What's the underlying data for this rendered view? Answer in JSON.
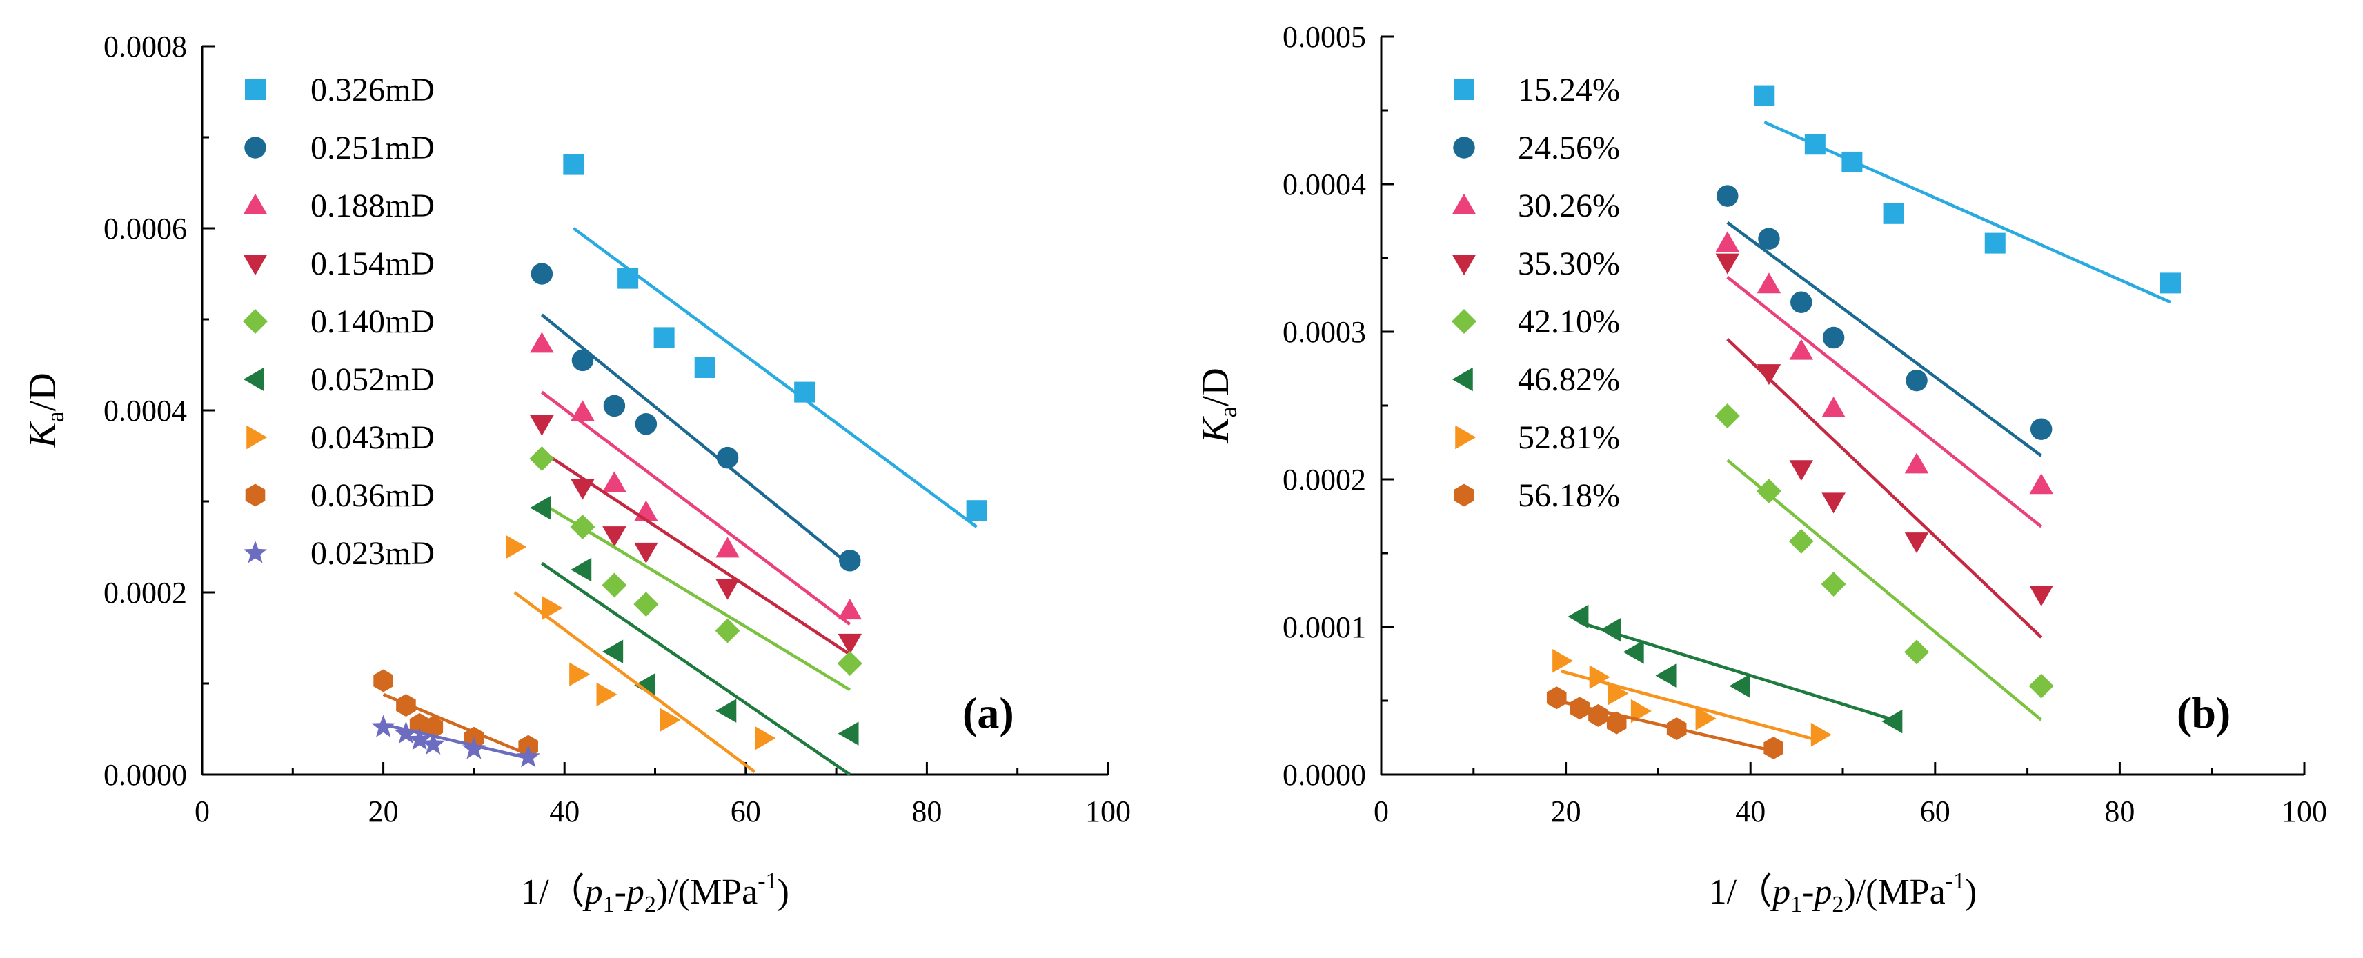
{
  "chart_data": [
    {
      "type": "scatter",
      "panel_label": "(a)",
      "title": "",
      "ylabel": {
        "italic": "K",
        "sub": "a",
        "rest": "/D"
      },
      "xlabel": {
        "prefix": "1/（",
        "p1": "p",
        "s1": "1",
        "dash": "-",
        "p2": "p",
        "s2": "2",
        "mid": ")/(MPa",
        "sup": "-1",
        "suffix": ")"
      },
      "xlim": [
        0,
        100
      ],
      "ylim": [
        0,
        0.0008
      ],
      "xticks": [
        0,
        20,
        40,
        60,
        80,
        100
      ],
      "yticks": [
        0,
        0.0002,
        0.0004,
        0.0006,
        0.0008
      ],
      "xtick_labels": [
        "0",
        "20",
        "40",
        "60",
        "80",
        "100"
      ],
      "ytick_labels": [
        "0.0000",
        "0.0002",
        "0.0004",
        "0.0006",
        "0.0008"
      ],
      "legend_position": "top-left",
      "series": [
        {
          "name": "0.326mD",
          "marker": "square",
          "color": "#29ABE2",
          "x": [
            41,
            47,
            51,
            55.5,
            66.5,
            85.5
          ],
          "y": [
            0.00067,
            0.000545,
            0.00048,
            0.000447,
            0.00042,
            0.00029
          ],
          "fit": [
            [
              41,
              0.0006
            ],
            [
              85.5,
              0.000272
            ]
          ]
        },
        {
          "name": "0.251mD",
          "marker": "circle",
          "color": "#1B6A93",
          "x": [
            37.5,
            42,
            45.5,
            49,
            58,
            71.5
          ],
          "y": [
            0.00055,
            0.000455,
            0.000405,
            0.000385,
            0.000348,
            0.000235
          ],
          "fit": [
            [
              37.5,
              0.000505
            ],
            [
              71.5,
              0.00023
            ]
          ]
        },
        {
          "name": "0.188mD",
          "marker": "triangle-up",
          "color": "#EC407A",
          "x": [
            37.5,
            42,
            45.5,
            49,
            58,
            71.5
          ],
          "y": [
            0.000473,
            0.000398,
            0.00032,
            0.000288,
            0.000248,
            0.00018
          ],
          "fit": [
            [
              37.5,
              0.00042
            ],
            [
              71.5,
              0.000165
            ]
          ]
        },
        {
          "name": "0.154mD",
          "marker": "triangle-down",
          "color": "#C62842",
          "x": [
            37.5,
            42,
            45.5,
            49,
            58,
            71.5
          ],
          "y": [
            0.000385,
            0.000315,
            0.000263,
            0.000245,
            0.000205,
            0.000145
          ],
          "fit": [
            [
              37.5,
              0.000355
            ],
            [
              71.5,
              0.000132
            ]
          ]
        },
        {
          "name": "0.140mD",
          "marker": "diamond",
          "color": "#7CC241",
          "x": [
            37.5,
            42,
            45.5,
            49,
            58,
            71.5
          ],
          "y": [
            0.000347,
            0.000272,
            0.000208,
            0.000187,
            0.000158,
            0.000122
          ],
          "fit": [
            [
              37.5,
              0.000298
            ],
            [
              71.5,
              9.3e-05
            ]
          ]
        },
        {
          "name": "0.052mD",
          "marker": "triangle-left",
          "color": "#1E7A3E",
          "x": [
            37.5,
            42,
            45.5,
            49,
            58,
            71.5
          ],
          "y": [
            0.000293,
            0.000225,
            0.000135,
            9.8e-05,
            7e-05,
            4.5e-05
          ],
          "fit": [
            [
              37.5,
              0.000232
            ],
            [
              71.5,
              0.0
            ]
          ]
        },
        {
          "name": "0.043mD",
          "marker": "triangle-right",
          "color": "#F7941D",
          "x": [
            34.5,
            38.5,
            41.5,
            44.5,
            51.5,
            62
          ],
          "y": [
            0.00025,
            0.000183,
            0.00011,
            8.8e-05,
            6e-05,
            4e-05
          ],
          "fit": [
            [
              34.5,
              0.0002
            ],
            [
              61,
              3e-06
            ]
          ]
        },
        {
          "name": "0.036mD",
          "marker": "hexagon",
          "color": "#D2691E",
          "x": [
            20,
            22.5,
            24,
            25.5,
            30,
            36
          ],
          "y": [
            0.000103,
            7.6e-05,
            5.5e-05,
            5.2e-05,
            4e-05,
            3.1e-05
          ],
          "fit": [
            [
              20,
              8.8e-05
            ],
            [
              36,
              2.2e-05
            ]
          ]
        },
        {
          "name": "0.023mD",
          "marker": "star",
          "color": "#6C6CC0",
          "x": [
            20,
            22.5,
            24,
            25.5,
            30,
            36
          ],
          "y": [
            5.2e-05,
            4.5e-05,
            3.8e-05,
            3.3e-05,
            2.8e-05,
            1.9e-05
          ],
          "fit": [
            [
              20,
              5.5e-05
            ],
            [
              36,
              1.8e-05
            ]
          ]
        }
      ]
    },
    {
      "type": "scatter",
      "panel_label": "(b)",
      "title": "",
      "ylabel": {
        "italic": "K",
        "sub": "a",
        "rest": "/D"
      },
      "xlabel": {
        "prefix": "1/（",
        "p1": "p",
        "s1": "1",
        "dash": "-",
        "p2": "p",
        "s2": "2",
        "mid": ")/(MPa",
        "sup": "-1",
        "suffix": ")"
      },
      "xlim": [
        0,
        100
      ],
      "ylim": [
        0,
        0.0005
      ],
      "xticks": [
        0,
        20,
        40,
        60,
        80,
        100
      ],
      "yticks": [
        0,
        0.0001,
        0.0002,
        0.0003,
        0.0004,
        0.0005
      ],
      "xtick_labels": [
        "0",
        "20",
        "40",
        "60",
        "80",
        "100"
      ],
      "ytick_labels": [
        "0.0000",
        "0.0001",
        "0.0002",
        "0.0003",
        "0.0004",
        "0.0005"
      ],
      "legend_position": "top-left",
      "series": [
        {
          "name": "15.24%",
          "marker": "square",
          "color": "#29ABE2",
          "x": [
            41.5,
            47,
            51,
            55.5,
            66.5,
            85.5
          ],
          "y": [
            0.00046,
            0.000427,
            0.000415,
            0.00038,
            0.00036,
            0.000333
          ],
          "fit": [
            [
              41.5,
              0.000442
            ],
            [
              85.5,
              0.00032
            ]
          ]
        },
        {
          "name": "24.56%",
          "marker": "circle",
          "color": "#1B6A93",
          "x": [
            37.5,
            42,
            45.5,
            49,
            58,
            71.5
          ],
          "y": [
            0.000392,
            0.000363,
            0.00032,
            0.000296,
            0.000267,
            0.000234
          ],
          "fit": [
            [
              37.5,
              0.000374
            ],
            [
              71.5,
              0.000216
            ]
          ]
        },
        {
          "name": "30.26%",
          "marker": "triangle-up",
          "color": "#EC407A",
          "x": [
            37.5,
            42,
            45.5,
            49,
            58,
            71.5
          ],
          "y": [
            0.00036,
            0.000332,
            0.000287,
            0.000248,
            0.00021,
            0.000196
          ],
          "fit": [
            [
              37.5,
              0.000337
            ],
            [
              71.5,
              0.000168
            ]
          ]
        },
        {
          "name": "35.30%",
          "marker": "triangle-down",
          "color": "#C62842",
          "x": [
            37.5,
            42,
            45.5,
            49,
            58,
            71.5
          ],
          "y": [
            0.000347,
            0.000272,
            0.000207,
            0.000185,
            0.000158,
            0.000122
          ],
          "fit": [
            [
              37.5,
              0.000295
            ],
            [
              71.5,
              9.3e-05
            ]
          ]
        },
        {
          "name": "42.10%",
          "marker": "diamond",
          "color": "#7CC241",
          "x": [
            37.5,
            42,
            45.5,
            49,
            58,
            71.5
          ],
          "y": [
            0.000243,
            0.000192,
            0.000158,
            0.000129,
            8.3e-05,
            6e-05
          ],
          "fit": [
            [
              37.5,
              0.000213
            ],
            [
              71.5,
              3.7e-05
            ]
          ]
        },
        {
          "name": "46.82%",
          "marker": "triangle-left",
          "color": "#1E7A3E",
          "x": [
            21.5,
            25,
            27.5,
            31,
            39,
            55.5
          ],
          "y": [
            0.000107,
            9.8e-05,
            8.3e-05,
            6.7e-05,
            6e-05,
            3.6e-05
          ],
          "fit": [
            [
              21.5,
              0.000103
            ],
            [
              55.5,
              3.7e-05
            ]
          ]
        },
        {
          "name": "52.81%",
          "marker": "triangle-right",
          "color": "#F7941D",
          "x": [
            19.5,
            23.5,
            25.5,
            28,
            35,
            47.5
          ],
          "y": [
            7.7e-05,
            6.6e-05,
            5.5e-05,
            4.3e-05,
            3.8e-05,
            2.7e-05
          ],
          "fit": [
            [
              19.5,
              7e-05
            ],
            [
              47.5,
              2.3e-05
            ]
          ]
        },
        {
          "name": "56.18%",
          "marker": "hexagon",
          "color": "#D2691E",
          "x": [
            19,
            21.5,
            23.5,
            25.5,
            32,
            42.5
          ],
          "y": [
            5.2e-05,
            4.5e-05,
            4e-05,
            3.5e-05,
            3.1e-05,
            1.8e-05
          ],
          "fit": [
            [
              19,
              5e-05
            ],
            [
              42.5,
              1.6e-05
            ]
          ]
        }
      ]
    }
  ]
}
